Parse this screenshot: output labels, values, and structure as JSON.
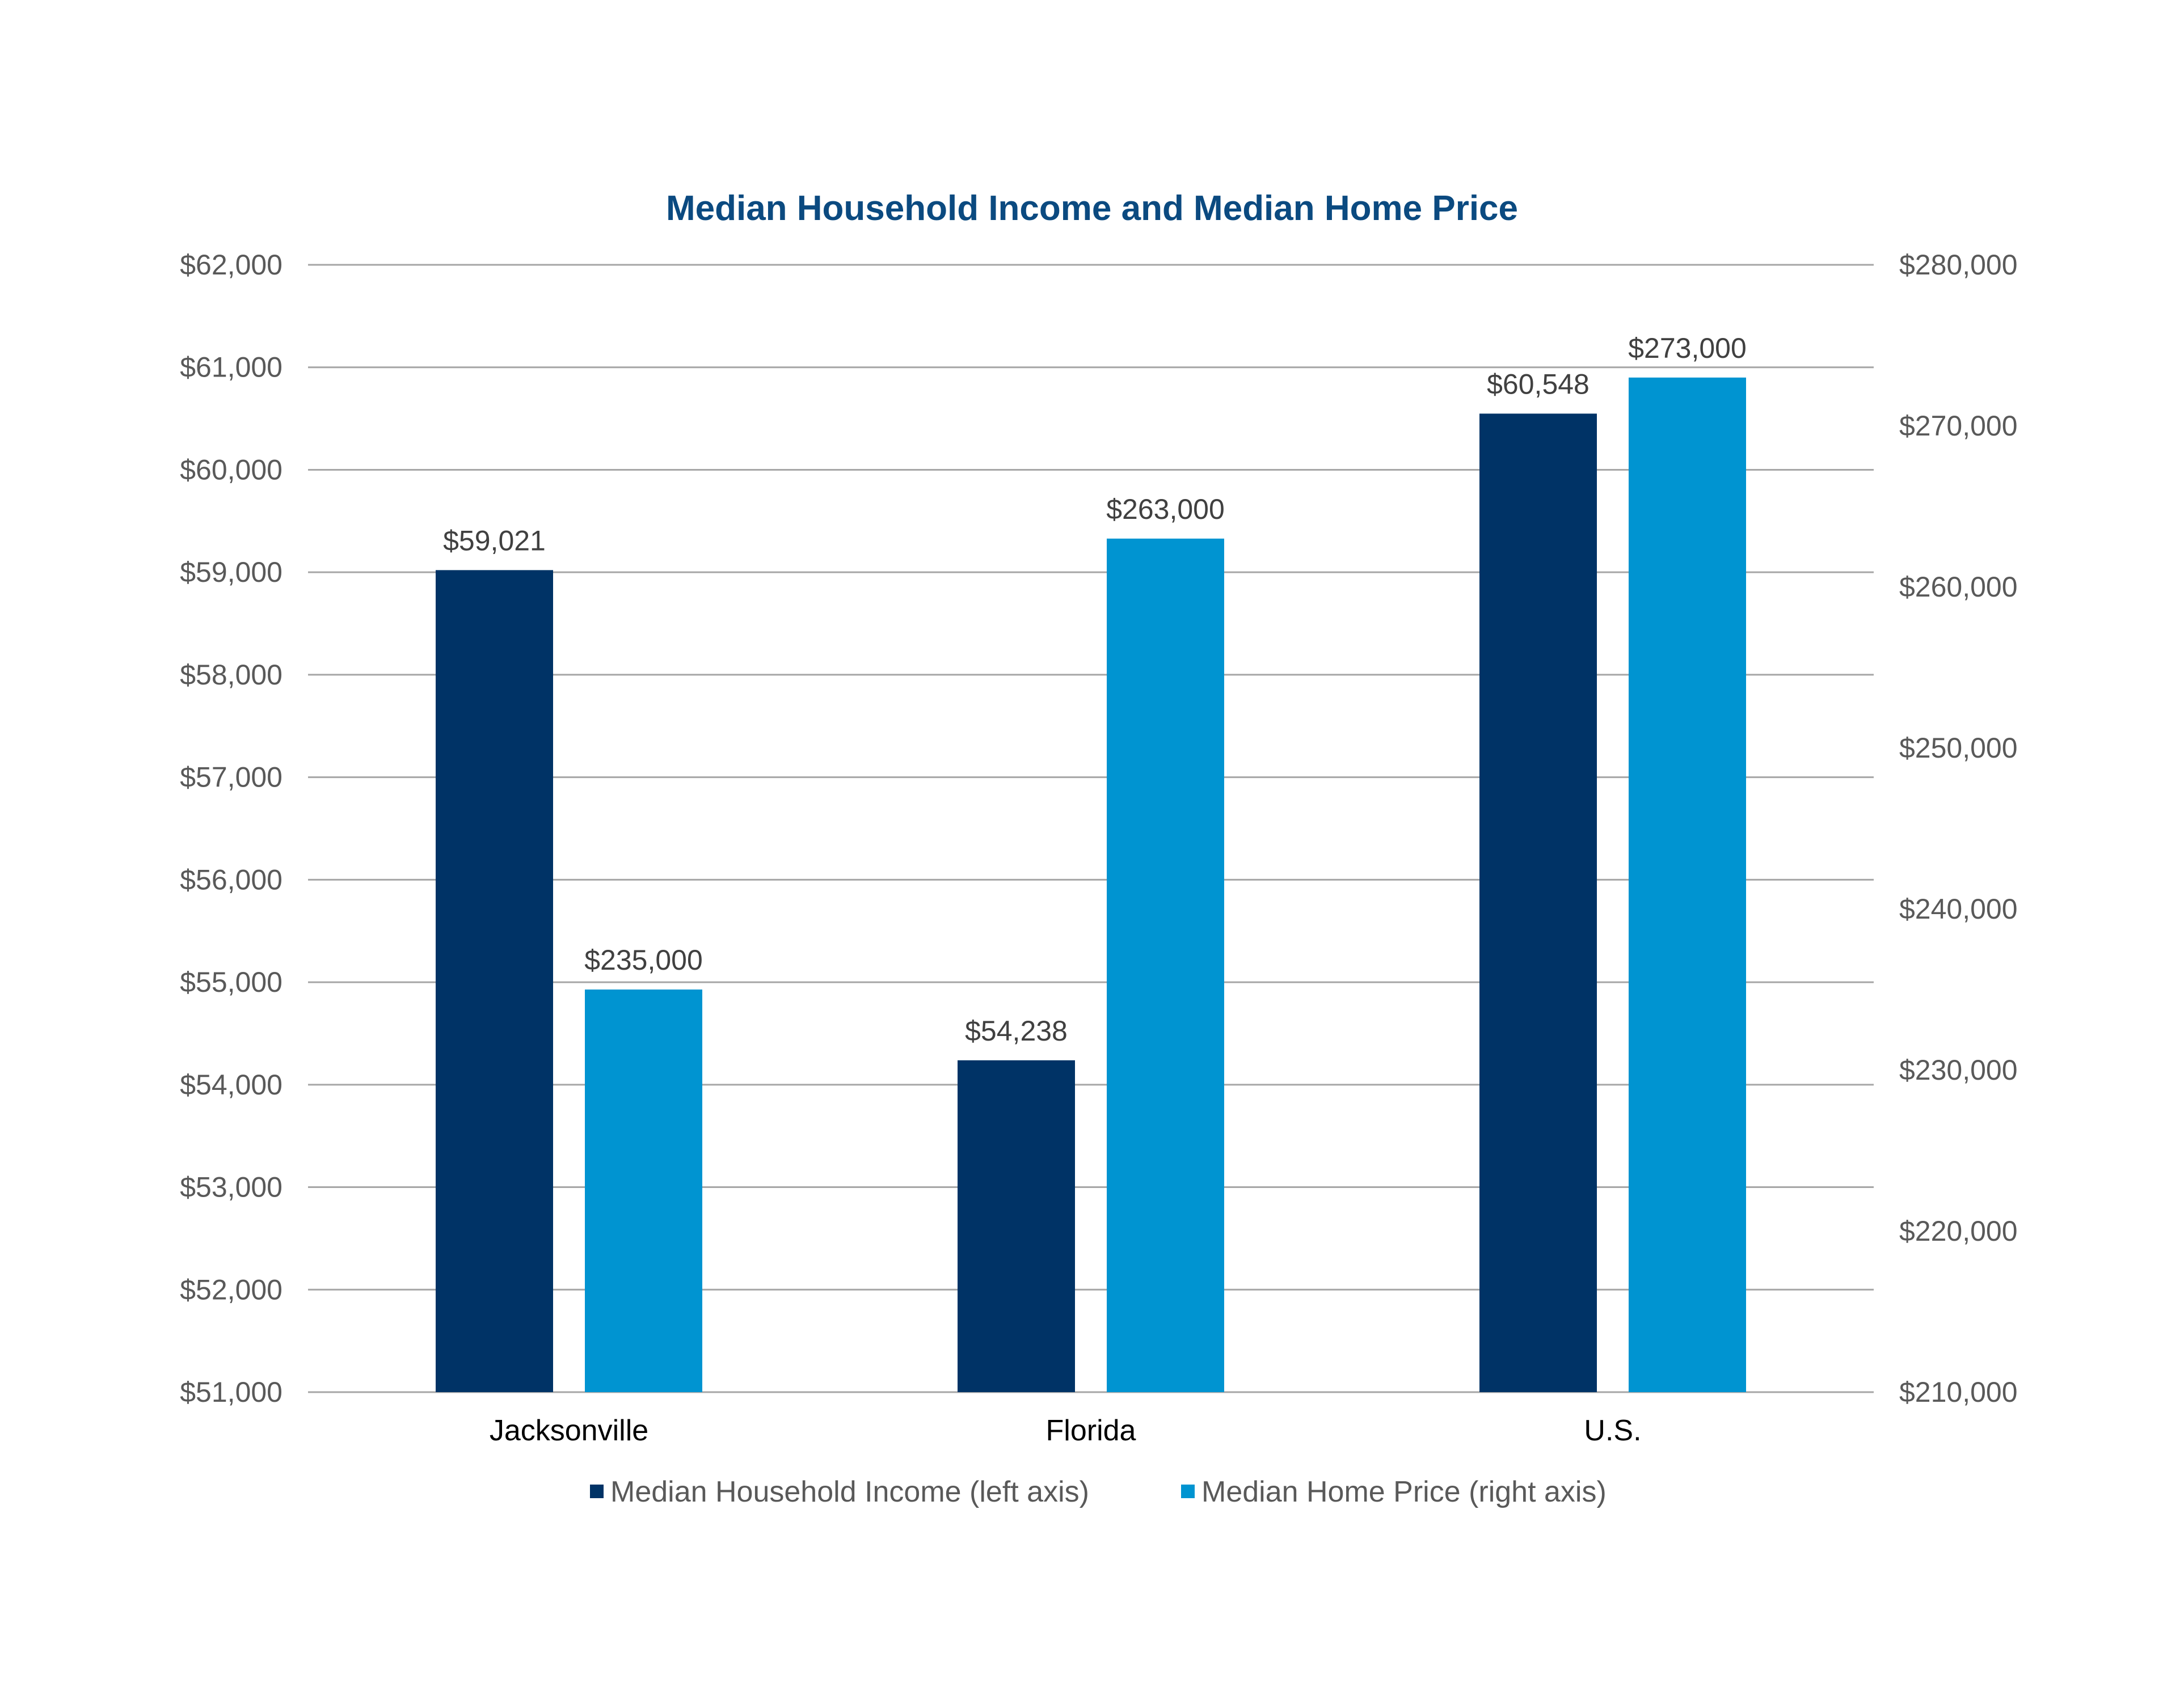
{
  "chart_data": {
    "type": "bar",
    "title": "Median Household Income and Median Home Price",
    "categories": [
      "Jacksonville",
      "Florida",
      "U.S."
    ],
    "series": [
      {
        "name": "Median Household Income (left axis)",
        "axis": "left",
        "color": "#003366",
        "values": [
          59021,
          54238,
          60548
        ],
        "labels": [
          "$59,021",
          "$54,238",
          "$60,548"
        ]
      },
      {
        "name": "Median Home Price (right axis)",
        "axis": "right",
        "color": "#0094D1",
        "values": [
          235000,
          263000,
          273000
        ],
        "labels": [
          "$235,000",
          "$263,000",
          "$273,000"
        ]
      }
    ],
    "y_left": {
      "lim": [
        51000,
        62000
      ],
      "ticks": [
        51000,
        52000,
        53000,
        54000,
        55000,
        56000,
        57000,
        58000,
        59000,
        60000,
        61000,
        62000
      ],
      "tick_labels": [
        "$51,000",
        "$52,000",
        "$53,000",
        "$54,000",
        "$55,000",
        "$56,000",
        "$57,000",
        "$58,000",
        "$59,000",
        "$60,000",
        "$61,000",
        "$62,000"
      ]
    },
    "y_right": {
      "lim": [
        210000,
        280000
      ],
      "ticks": [
        210000,
        220000,
        230000,
        240000,
        250000,
        260000,
        270000,
        280000
      ],
      "tick_labels": [
        "$210,000",
        "$220,000",
        "$230,000",
        "$240,000",
        "$250,000",
        "$260,000",
        "$270,000",
        "$280,000"
      ]
    },
    "grid": true,
    "legend": "bottom",
    "title_color": "#0B4A80",
    "grid_color": "#A6A6A6"
  }
}
